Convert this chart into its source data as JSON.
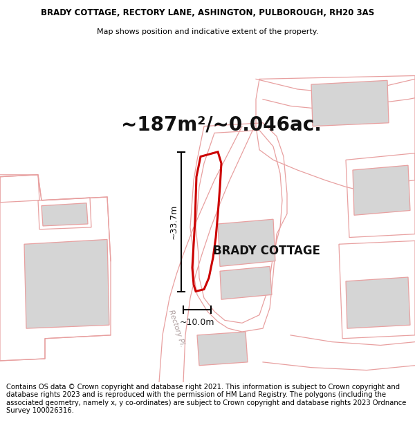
{
  "title_line1": "BRADY COTTAGE, RECTORY LANE, ASHINGTON, PULBOROUGH, RH20 3AS",
  "title_line2": "Map shows position and indicative extent of the property.",
  "area_text": "~187m²/~0.046ac.",
  "label_height": "~33.7m",
  "label_width": "~10.0m",
  "property_label": "BRADY COTTAGE",
  "road_label": "Rectory Pl...",
  "footer_text": "Contains OS data © Crown copyright and database right 2021. This information is subject to Crown copyright and database rights 2023 and is reproduced with the permission of HM Land Registry. The polygons (including the associated geometry, namely x, y co-ordinates) are subject to Crown copyright and database rights 2023 Ordnance Survey 100026316.",
  "map_bg": "#f9f6f6",
  "red_color": "#cc0000",
  "light_red": "#e8a0a0",
  "grey_fill": "#d5d5d5",
  "title_fontsize": 8.5,
  "subtitle_fontsize": 8.0,
  "area_fontsize": 20,
  "label_fontsize": 9,
  "property_label_fontsize": 12,
  "footer_fontsize": 7.2,
  "road_label_fontsize": 7.5
}
